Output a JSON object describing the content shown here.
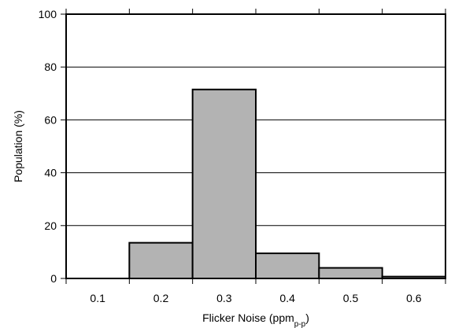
{
  "chart_data": {
    "type": "bar",
    "xlabel": "Flicker Noise (ppm",
    "xlabel_subscript": "p-p",
    "xlabel_suffix": ")",
    "ylabel": "Population (%)",
    "categories": [
      "0.1",
      "0.2",
      "0.3",
      "0.4",
      "0.5",
      "0.6"
    ],
    "values": [
      0,
      13.5,
      71.5,
      9.5,
      4,
      0.7
    ],
    "ylim": [
      0,
      100
    ],
    "yticks": [
      0,
      20,
      40,
      60,
      80,
      100
    ],
    "grid": true,
    "bar_color": "#b3b3b3",
    "edge_color": "#000000"
  }
}
